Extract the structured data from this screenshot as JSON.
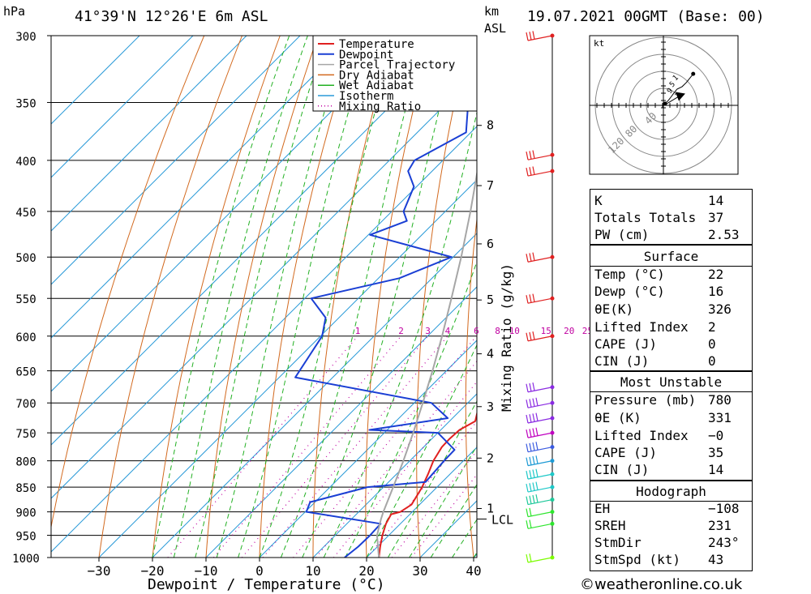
{
  "header": {
    "location": "41°39'N 12°26'E 6m ASL",
    "date": "19.07.2021 00GMT (Base: 00)",
    "hpa_unit": "hPa",
    "km_unit": "km",
    "asl_unit": "ASL"
  },
  "chart_data": {
    "type": "line",
    "title": "",
    "xlabel": "Dewpoint / Temperature (°C)",
    "ylabel": "hPa",
    "right_axis_label": "Mixing Ratio (g/kg)",
    "x_ticks": [
      -30,
      -20,
      -10,
      0,
      10,
      20,
      30,
      40
    ],
    "pressure_levels": [
      300,
      350,
      400,
      450,
      500,
      550,
      600,
      650,
      700,
      750,
      800,
      850,
      900,
      950,
      1000
    ],
    "km_ticks": [
      {
        "km": "1",
        "p": 893
      },
      {
        "km": "2",
        "p": 795
      },
      {
        "km": "3",
        "p": 706
      },
      {
        "km": "4",
        "p": 625
      },
      {
        "km": "5",
        "p": 552
      },
      {
        "km": "6",
        "p": 485
      },
      {
        "km": "7",
        "p": 424
      },
      {
        "km": "8",
        "p": 369
      }
    ],
    "lcl": {
      "label": "LCL",
      "p": 915
    },
    "mixing_ratio_labels": [
      "1",
      "2",
      "3",
      "4",
      "6",
      "8",
      "10",
      "15",
      "20",
      "25"
    ],
    "legend": [
      "Temperature",
      "Dewpoint",
      "Parcel Trajectory",
      "Dry Adiabat",
      "Wet Adiabat",
      "Isotherm",
      "Mixing Ratio"
    ],
    "legend_position": "top-right",
    "series": [
      {
        "name": "Temperature",
        "color": "#e02020",
        "points": [
          [
            1000,
            22.3
          ],
          [
            975,
            20.5
          ],
          [
            950,
            18.8
          ],
          [
            925,
            17.3
          ],
          [
            905,
            16.5
          ],
          [
            900,
            17.8
          ],
          [
            885,
            18.5
          ],
          [
            860,
            17.6
          ],
          [
            850,
            17.2
          ],
          [
            825,
            15.9
          ],
          [
            800,
            14.4
          ],
          [
            775,
            13.4
          ],
          [
            760,
            13.3
          ],
          [
            745,
            13.5
          ],
          [
            730,
            14.8
          ],
          [
            700,
            12.2
          ],
          [
            675,
            10.9
          ],
          [
            650,
            10.2
          ],
          [
            600,
            7.4
          ],
          [
            570,
            5.1
          ],
          [
            550,
            4.0
          ],
          [
            525,
            1.3
          ],
          [
            500,
            -1.8
          ],
          [
            475,
            -3.4
          ],
          [
            450,
            -6.3
          ],
          [
            425,
            -9.1
          ],
          [
            410,
            -11.6
          ],
          [
            400,
            -12.0
          ],
          [
            375,
            -16.2
          ],
          [
            350,
            -21.3
          ],
          [
            325,
            -27.1
          ],
          [
            300,
            -32.5
          ]
        ]
      },
      {
        "name": "Dewpoint",
        "color": "#1a3fd4",
        "points": [
          [
            1000,
            15.9
          ],
          [
            975,
            16.4
          ],
          [
            950,
            16.5
          ],
          [
            925,
            16.3
          ],
          [
            900,
            0.2
          ],
          [
            880,
            -0.9
          ],
          [
            850,
            7.0
          ],
          [
            840,
            16.9
          ],
          [
            800,
            16.4
          ],
          [
            780,
            16.3
          ],
          [
            750,
            10.0
          ],
          [
            745,
            -3.3
          ],
          [
            725,
            9.1
          ],
          [
            700,
            3.2
          ],
          [
            660,
            -27.0
          ],
          [
            600,
            -29.7
          ],
          [
            575,
            -32.5
          ],
          [
            550,
            -38.8
          ],
          [
            525,
            -26.1
          ],
          [
            500,
            -20.3
          ],
          [
            475,
            -39.7
          ],
          [
            460,
            -35.4
          ],
          [
            450,
            -37.8
          ],
          [
            425,
            -40.5
          ],
          [
            410,
            -44.5
          ],
          [
            400,
            -45.3
          ],
          [
            375,
            -40.9
          ],
          [
            350,
            -46.1
          ],
          [
            325,
            -48.8
          ],
          [
            300,
            -50.6
          ]
        ]
      },
      {
        "name": "Parcel Trajectory",
        "color": "#a6a6a6",
        "points": [
          [
            1000,
            22.3
          ],
          [
            950,
            17.8
          ],
          [
            915,
            15.5
          ],
          [
            900,
            14.6
          ],
          [
            850,
            11.8
          ],
          [
            800,
            8.8
          ],
          [
            750,
            5.4
          ],
          [
            700,
            1.6
          ],
          [
            650,
            -2.6
          ],
          [
            600,
            -7.3
          ],
          [
            550,
            -12.6
          ],
          [
            500,
            -18.5
          ],
          [
            450,
            -25.3
          ],
          [
            400,
            -33.2
          ],
          [
            350,
            -42.4
          ],
          [
            300,
            -53.1
          ]
        ]
      }
    ],
    "hodograph": {
      "unit_label": "kt",
      "ring_labels": [
        "40",
        "80",
        "120"
      ],
      "points": [
        [
          0,
          0
        ],
        [
          3,
          3
        ],
        [
          6,
          6
        ],
        [
          9,
          10
        ],
        [
          12,
          14
        ],
        [
          16,
          19
        ],
        [
          22,
          22
        ],
        [
          27,
          27
        ],
        [
          35,
          37
        ]
      ],
      "level_labels": [
        "9",
        "5",
        "1",
        "3"
      ],
      "storm_motion_marker": [
        19,
        11
      ]
    },
    "wind_barbs": [
      {
        "p": 1000,
        "color": "#7cfc00"
      },
      {
        "p": 925,
        "color": "#2ee52e"
      },
      {
        "p": 900,
        "color": "#2ee52e"
      },
      {
        "p": 875,
        "color": "#1ec89a"
      },
      {
        "p": 850,
        "color": "#1ec8c8"
      },
      {
        "p": 825,
        "color": "#1ec8c8"
      },
      {
        "p": 800,
        "color": "#1e9ad4"
      },
      {
        "p": 775,
        "color": "#3a5ae0"
      },
      {
        "p": 750,
        "color": "#c000c0"
      },
      {
        "p": 725,
        "color": "#8a2be2"
      },
      {
        "p": 700,
        "color": "#8a2be2"
      },
      {
        "p": 675,
        "color": "#8a2be2"
      },
      {
        "p": 600,
        "color": "#e02020"
      },
      {
        "p": 550,
        "color": "#e02020"
      },
      {
        "p": 500,
        "color": "#e02020"
      },
      {
        "p": 410,
        "color": "#e02020"
      },
      {
        "p": 395,
        "color": "#e02020"
      },
      {
        "p": 300,
        "color": "#e02020"
      }
    ]
  },
  "indices": {
    "k_label": "K",
    "k": "14",
    "tt_label": "Totals Totals",
    "tt": "37",
    "pw_label": "PW (cm)",
    "pw": "2.53"
  },
  "surface": {
    "title": "Surface",
    "temp_label": "Temp (°C)",
    "temp": "22",
    "dewp_label": "Dewp (°C)",
    "dewp": "16",
    "theta_label": "θE(K)",
    "theta": "326",
    "li_label": "Lifted Index",
    "li": "2",
    "cape_label": "CAPE (J)",
    "cape": "0",
    "cin_label": "CIN (J)",
    "cin": "0"
  },
  "most_unstable": {
    "title": "Most Unstable",
    "pressure_label": "Pressure (mb)",
    "pressure": "780",
    "theta_label": "θE (K)",
    "theta": "331",
    "li_label": "Lifted Index",
    "li": "−0",
    "cape_label": "CAPE (J)",
    "cape": "35",
    "cin_label": "CIN (J)",
    "cin": "14"
  },
  "hodo_stats": {
    "title": "Hodograph",
    "eh_label": "EH",
    "eh": "−108",
    "sreh_label": "SREH",
    "sreh": "231",
    "stmdir_label": "StmDir",
    "stmdir": "243°",
    "stmspd_label": "StmSpd (kt)",
    "stmspd": "43"
  },
  "footer": {
    "copyright": "©weatheronline.co.uk"
  },
  "colors": {
    "temperature": "#e02020",
    "dewpoint": "#1a3fd4",
    "parcel": "#a6a6a6",
    "dry_adiabat": "#d2691e",
    "wet_adiabat": "#22b022",
    "isotherm": "#2a9ad8",
    "mixing_ratio": "#c000a0"
  }
}
